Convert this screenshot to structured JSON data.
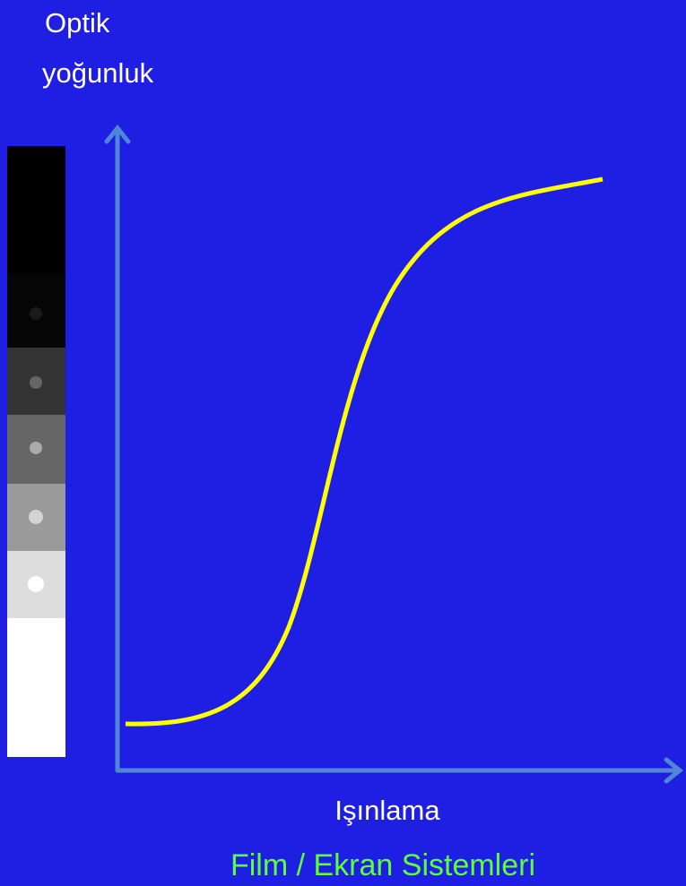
{
  "axes": {
    "y_label": [
      "Optik",
      "yoğunluk"
    ],
    "x_label": "Işınlama"
  },
  "caption": "Film / Ekran Sistemleri"
}
